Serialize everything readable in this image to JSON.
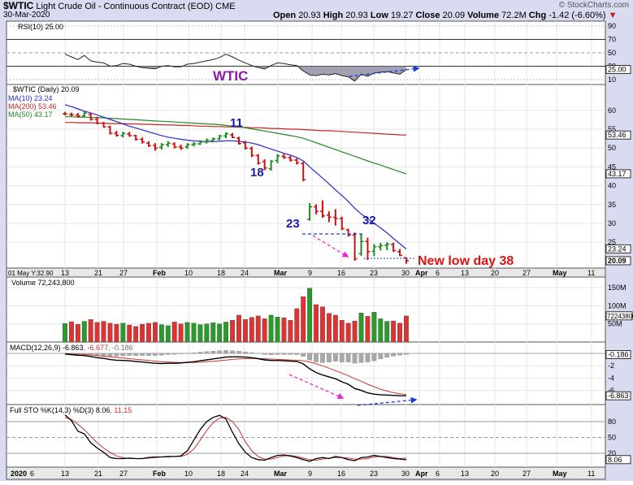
{
  "header": {
    "symbol": "$WTIC",
    "name": "Light Crude Oil - Continuous Contract (EOD)",
    "exchange": "CME",
    "date": "30-Mar-2020",
    "brand": "© StockCharts.com",
    "open_label": "Open",
    "open": "20.93",
    "high_label": "High",
    "high": "20.93",
    "low_label": "Low",
    "low": "19.27",
    "close_label": "Close",
    "close": "20.09",
    "volume_label": "Volume",
    "volume": "72.2M",
    "chg_label": "Chg",
    "chg": "-1.42 (-6.60%)",
    "chg_arrow": "▼"
  },
  "panels": {
    "rsi_label": "RSI(10) 25.00",
    "price_label": "$WTIC (Daily) 20.09",
    "ma10_label": "MA(10) 23.24",
    "ma200_label": "MA(200) 53.46",
    "ma50_label": "MA(50) 43.17",
    "volume_label": "Volume 72,243,800",
    "macd_prefix": "MACD(12,26,9)",
    "macd_v1": "-6.863",
    "macd_v2": "-6.677",
    "macd_v3": "-0.186",
    "sto_prefix": "Full STO %K(14,3) %D(3)",
    "sto_v1": "8.06",
    "sto_v2": "11.15",
    "prev_date_label": "01 May Y:32.90"
  },
  "annotations": {
    "wtic": "WTIC",
    "n11": "11",
    "n18": "18",
    "n23": "23",
    "n32": "32",
    "new_low": "New low day 38"
  },
  "colors": {
    "bg": "#d9dbf0",
    "up": "#1a8a1a",
    "down": "#cc1111",
    "ma10": "#2a2acc",
    "ma200": "#cc2222",
    "ma50": "#228822",
    "annot_blue": "#1a1aaa",
    "annot_purple": "#8a1aaa",
    "annot_red": "#dd1111",
    "arrow_blue": "#1a3ae0",
    "arrow_magenta": "#ee22cc"
  },
  "chart_data": {
    "type": "candlestick",
    "x_ticks": [
      "13",
      "21",
      "27",
      "Feb",
      "10",
      "18",
      "24",
      "Mar",
      "9",
      "16",
      "23",
      "30",
      "Apr",
      "6",
      "13",
      "20",
      "27",
      "May",
      "11"
    ],
    "x_ticks_bottom": [
      "2020",
      "6",
      "13",
      "21",
      "27",
      "Feb",
      "10",
      "18",
      "24",
      "Mar",
      "9",
      "16",
      "23",
      "30",
      "Apr",
      "6",
      "13",
      "20",
      "27",
      "May",
      "11"
    ],
    "price_axis": {
      "ticks": [
        25,
        30,
        35,
        40,
        45,
        50,
        55,
        60
      ],
      "range": [
        19,
        66
      ],
      "badges": {
        "ma200": "53.46",
        "ma50": "43.17",
        "ma10": "23.24",
        "close": "20.09"
      }
    },
    "rsi_axis": {
      "ticks": [
        10,
        30,
        50,
        70,
        90
      ],
      "badges": [
        "25.00"
      ]
    },
    "volume_axis": {
      "ticks": [
        "50M",
        "100M",
        "150M"
      ],
      "badge": "72243800"
    },
    "macd_axis": {
      "ticks": [
        -2,
        -4,
        -6
      ],
      "badges": [
        "-0.186",
        "-6.863"
      ]
    },
    "sto_axis": {
      "ticks": [
        20,
        50,
        80
      ],
      "badge": "8.06"
    },
    "ohlc": [
      [
        59.1,
        59.6,
        58.7,
        59.0
      ],
      [
        58.9,
        59.4,
        58.4,
        58.8
      ],
      [
        58.7,
        59.3,
        58.1,
        58.5
      ],
      [
        58.5,
        59.8,
        58.2,
        59.3
      ],
      [
        58.9,
        59.2,
        57.3,
        57.6
      ],
      [
        57.6,
        58.3,
        56.3,
        56.6
      ],
      [
        56.6,
        56.9,
        55.4,
        55.6
      ],
      [
        55.6,
        55.9,
        53.6,
        53.9
      ],
      [
        53.9,
        54.6,
        53.0,
        53.4
      ],
      [
        53.3,
        54.3,
        52.8,
        53.9
      ],
      [
        53.7,
        54.3,
        53.0,
        53.3
      ],
      [
        53.3,
        53.5,
        52.0,
        52.3
      ],
      [
        52.3,
        52.8,
        51.2,
        51.6
      ],
      [
        51.3,
        51.8,
        50.3,
        50.6
      ],
      [
        50.7,
        51.3,
        49.3,
        50.0
      ],
      [
        50.2,
        51.3,
        49.6,
        50.9
      ],
      [
        50.9,
        51.8,
        50.3,
        51.3
      ],
      [
        51.1,
        51.5,
        49.9,
        50.2
      ],
      [
        50.3,
        50.9,
        49.5,
        50.0
      ],
      [
        50.3,
        51.3,
        49.8,
        50.9
      ],
      [
        50.9,
        51.6,
        50.4,
        51.1
      ],
      [
        51.1,
        52.1,
        50.8,
        51.6
      ],
      [
        51.6,
        52.5,
        51.2,
        52.1
      ],
      [
        52.0,
        52.8,
        51.5,
        52.4
      ],
      [
        52.4,
        53.5,
        52.1,
        53.2
      ],
      [
        53.2,
        54.2,
        52.6,
        53.8
      ],
      [
        53.5,
        54.0,
        52.6,
        52.8
      ],
      [
        52.6,
        53.0,
        50.9,
        51.2
      ],
      [
        51.4,
        51.9,
        49.6,
        50.0
      ],
      [
        49.9,
        50.4,
        47.6,
        48.0
      ],
      [
        48.0,
        48.4,
        45.6,
        46.0
      ],
      [
        46.4,
        47.0,
        44.1,
        44.7
      ],
      [
        44.5,
        46.8,
        44.0,
        46.5
      ],
      [
        46.7,
        48.4,
        46.0,
        47.9
      ],
      [
        47.8,
        48.5,
        47.1,
        47.5
      ],
      [
        47.4,
        47.9,
        46.4,
        46.8
      ],
      [
        46.8,
        47.3,
        45.6,
        46.1
      ],
      [
        45.9,
        46.3,
        41.2,
        41.6
      ],
      [
        31.1,
        35.4,
        30.7,
        34.4
      ],
      [
        34.4,
        35.1,
        32.4,
        33.2
      ],
      [
        33.2,
        36.1,
        31.5,
        32.0
      ],
      [
        32.2,
        33.2,
        30.3,
        31.7
      ],
      [
        31.6,
        33.8,
        29.4,
        31.3
      ],
      [
        31.3,
        31.8,
        28.2,
        28.6
      ],
      [
        28.3,
        28.6,
        26.5,
        26.9
      ],
      [
        26.9,
        27.6,
        20.1,
        20.6
      ],
      [
        22.0,
        27.1,
        21.4,
        25.2
      ],
      [
        25.2,
        26.2,
        20.3,
        22.5
      ],
      [
        22.6,
        24.5,
        21.3,
        23.8
      ],
      [
        23.8,
        24.8,
        22.8,
        24.1
      ],
      [
        24.2,
        25.0,
        22.9,
        24.5
      ],
      [
        24.4,
        24.9,
        22.4,
        22.8
      ],
      [
        22.5,
        23.2,
        21.3,
        21.5
      ],
      [
        20.9,
        20.9,
        19.3,
        20.1
      ]
    ],
    "ma10": [
      61.5,
      61.0,
      60.4,
      59.8,
      59.3,
      58.8,
      58.2,
      57.6,
      57.0,
      56.4,
      55.8,
      55.3,
      54.8,
      54.3,
      53.8,
      53.3,
      52.9,
      52.6,
      52.3,
      52.1,
      51.9,
      51.8,
      51.7,
      51.7,
      51.8,
      51.9,
      51.9,
      51.8,
      51.6,
      51.3,
      50.9,
      50.3,
      49.7,
      49.2,
      48.6,
      48.1,
      47.5,
      46.6,
      45.0,
      43.5,
      42.0,
      40.5,
      38.9,
      37.4,
      35.8,
      34.0,
      32.5,
      31.3,
      30.0,
      28.8,
      27.5,
      26.0,
      24.6,
      23.2
    ],
    "ma200": [
      56.8,
      56.8,
      56.7,
      56.7,
      56.7,
      56.6,
      56.6,
      56.5,
      56.5,
      56.5,
      56.4,
      56.4,
      56.3,
      56.3,
      56.2,
      56.2,
      56.1,
      56.1,
      56.0,
      56.0,
      55.9,
      55.8,
      55.8,
      55.7,
      55.7,
      55.6,
      55.6,
      55.5,
      55.5,
      55.4,
      55.4,
      55.3,
      55.2,
      55.2,
      55.1,
      55.0,
      55.0,
      54.9,
      54.8,
      54.7,
      54.6,
      54.6,
      54.5,
      54.4,
      54.3,
      54.2,
      54.1,
      54.0,
      53.9,
      53.8,
      53.7,
      53.6,
      53.5,
      53.46
    ],
    "ma50": [
      58.3,
      58.3,
      58.2,
      58.2,
      58.1,
      58.1,
      58.0,
      57.9,
      57.8,
      57.7,
      57.6,
      57.5,
      57.4,
      57.3,
      57.2,
      57.1,
      57.0,
      56.9,
      56.8,
      56.7,
      56.6,
      56.5,
      56.4,
      56.3,
      56.2,
      56.0,
      55.8,
      55.6,
      55.4,
      55.1,
      54.8,
      54.5,
      54.2,
      53.9,
      53.6,
      53.3,
      53.0,
      52.6,
      52.0,
      51.4,
      50.8,
      50.2,
      49.6,
      49.0,
      48.4,
      47.8,
      47.2,
      46.6,
      46.0,
      45.5,
      44.9,
      44.3,
      43.7,
      43.17
    ],
    "rsi": [
      48,
      44,
      40,
      46,
      38,
      36,
      35,
      30,
      31,
      34,
      33,
      30,
      28,
      27,
      26,
      30,
      31,
      29,
      29,
      33,
      34,
      36,
      38,
      40,
      43,
      48,
      44,
      39,
      35,
      31,
      28,
      26,
      31,
      35,
      34,
      32,
      31,
      23,
      17,
      16,
      18,
      17,
      19,
      16,
      14,
      8,
      18,
      15,
      20,
      21,
      22,
      20,
      18,
      25
    ],
    "volume_m": [
      51,
      56,
      49,
      57,
      62,
      54,
      57,
      52,
      49,
      52,
      47,
      43,
      49,
      52,
      54,
      48,
      45,
      55,
      50,
      54,
      52,
      48,
      50,
      53,
      50,
      55,
      60,
      74,
      62,
      68,
      72,
      64,
      74,
      69,
      67,
      60,
      92,
      125,
      148,
      103,
      97,
      79,
      74,
      60,
      52,
      58,
      80,
      71,
      82,
      64,
      57,
      58,
      52,
      72
    ],
    "vol_up": [
      true,
      false,
      false,
      true,
      false,
      false,
      false,
      false,
      false,
      true,
      false,
      false,
      false,
      false,
      false,
      true,
      true,
      false,
      false,
      true,
      true,
      true,
      true,
      true,
      true,
      true,
      false,
      false,
      false,
      false,
      false,
      false,
      true,
      true,
      false,
      false,
      false,
      false,
      true,
      false,
      false,
      false,
      false,
      false,
      false,
      false,
      true,
      false,
      true,
      true,
      true,
      false,
      false,
      false
    ],
    "macd": [
      -0.1,
      -0.2,
      -0.3,
      -0.35,
      -0.5,
      -0.7,
      -0.8,
      -1.0,
      -1.1,
      -1.15,
      -1.2,
      -1.3,
      -1.4,
      -1.5,
      -1.6,
      -1.65,
      -1.6,
      -1.6,
      -1.55,
      -1.45,
      -1.35,
      -1.2,
      -1.05,
      -0.9,
      -0.75,
      -0.6,
      -0.55,
      -0.55,
      -0.6,
      -0.7,
      -0.85,
      -1.05,
      -1.15,
      -1.15,
      -1.2,
      -1.25,
      -1.3,
      -1.7,
      -2.5,
      -3.1,
      -3.5,
      -3.8,
      -4.1,
      -4.6,
      -5.0,
      -5.7,
      -6.0,
      -6.4,
      -6.6,
      -6.7,
      -6.75,
      -6.8,
      -6.85,
      -6.863
    ],
    "macd_signal": [
      -0.05,
      -0.1,
      -0.15,
      -0.2,
      -0.25,
      -0.35,
      -0.45,
      -0.55,
      -0.65,
      -0.75,
      -0.85,
      -0.95,
      -1.05,
      -1.15,
      -1.25,
      -1.35,
      -1.4,
      -1.45,
      -1.48,
      -1.48,
      -1.46,
      -1.42,
      -1.36,
      -1.28,
      -1.18,
      -1.08,
      -0.98,
      -0.9,
      -0.85,
      -0.82,
      -0.83,
      -0.87,
      -0.92,
      -0.97,
      -1.02,
      -1.06,
      -1.1,
      -1.2,
      -1.4,
      -1.7,
      -2.0,
      -2.4,
      -2.8,
      -3.2,
      -3.6,
      -4.1,
      -4.5,
      -5.0,
      -5.4,
      -5.8,
      -6.1,
      -6.35,
      -6.55,
      -6.677
    ],
    "macd_hist": [
      -0.05,
      -0.1,
      -0.15,
      -0.15,
      -0.25,
      -0.35,
      -0.35,
      -0.45,
      -0.45,
      -0.4,
      -0.35,
      -0.35,
      -0.35,
      -0.35,
      -0.35,
      -0.3,
      -0.2,
      -0.15,
      -0.07,
      0.03,
      0.11,
      0.22,
      0.31,
      0.38,
      0.43,
      0.48,
      0.43,
      0.35,
      0.25,
      0.12,
      -0.02,
      -0.18,
      -0.23,
      -0.18,
      -0.18,
      -0.19,
      -0.2,
      -0.5,
      -1.1,
      -1.4,
      -1.5,
      -1.4,
      -1.3,
      -1.4,
      -1.4,
      -1.6,
      -1.5,
      -1.4,
      -1.2,
      -0.9,
      -0.65,
      -0.45,
      -0.3,
      -0.186
    ],
    "sto_k": [
      93,
      82,
      62,
      57,
      40,
      30,
      22,
      12,
      10,
      10,
      11,
      10,
      10,
      12,
      13,
      13,
      14,
      14,
      15,
      25,
      45,
      65,
      80,
      88,
      92,
      85,
      60,
      38,
      22,
      12,
      8,
      7,
      12,
      16,
      17,
      15,
      12,
      8,
      5,
      10,
      12,
      10,
      14,
      12,
      8,
      6,
      12,
      13,
      16,
      14,
      12,
      10,
      9,
      8.06
    ],
    "sto_d": [
      88,
      84,
      75,
      65,
      52,
      40,
      30,
      22,
      15,
      12,
      10,
      10,
      10,
      11,
      12,
      13,
      13,
      14,
      14,
      18,
      28,
      45,
      63,
      78,
      87,
      88,
      80,
      65,
      42,
      25,
      14,
      9,
      9,
      12,
      15,
      16,
      14,
      11,
      8,
      7,
      9,
      11,
      12,
      12,
      11,
      9,
      9,
      10,
      13,
      14,
      14,
      12,
      10,
      11.15
    ]
  }
}
